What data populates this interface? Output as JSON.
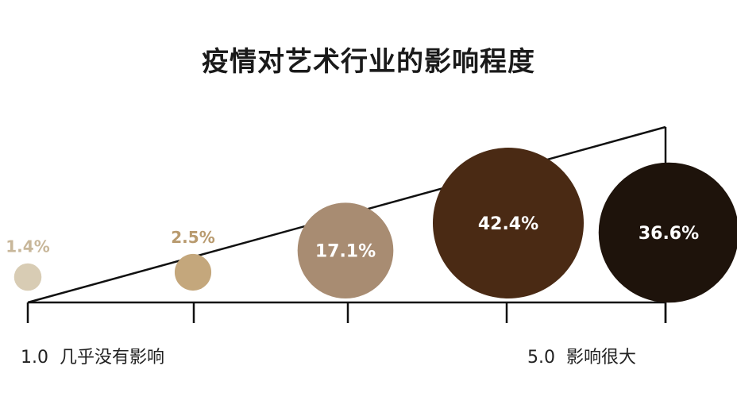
{
  "chart_data": {
    "type": "bubble",
    "title": "疫情对艺术行业的影响程度",
    "x": [
      1,
      2,
      3,
      4,
      5
    ],
    "values": [
      1.4,
      2.5,
      17.1,
      42.4,
      36.6
    ],
    "labels": [
      "1.4%",
      "2.5%",
      "17.1%",
      "42.4%",
      "36.6%"
    ],
    "colors": [
      "#d8ccb4",
      "#c4a77c",
      "#a88c72",
      "#4a2a14",
      "#1e130b"
    ],
    "label_colors": [
      "#c8b79a",
      "#b89a6e",
      "#ffffff",
      "#ffffff",
      "#ffffff"
    ],
    "axis_labels": {
      "left": "1.0  几乎没有影响",
      "right": "5.0  影响很大"
    },
    "xlim": [
      1,
      5
    ]
  }
}
